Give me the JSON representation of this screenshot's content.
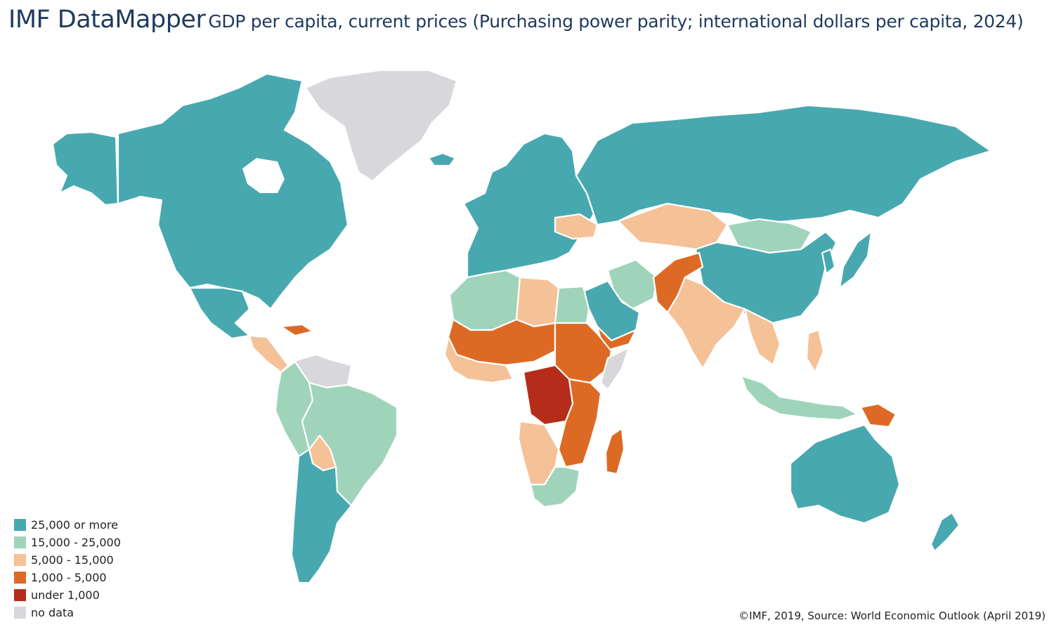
{
  "header": {
    "brand": "IMF DataMapper",
    "subtitle": "GDP per capita, current prices (Purchasing power parity; international dollars per capita, 2024)"
  },
  "legend": {
    "items": [
      {
        "label": "25,000 or more",
        "color": "#48a8b0"
      },
      {
        "label": "15,000 - 25,000",
        "color": "#9fd4bb"
      },
      {
        "label": "5,000 - 15,000",
        "color": "#f5c197"
      },
      {
        "label": "1,000 - 5,000",
        "color": "#dd6a24"
      },
      {
        "label": "under 1,000",
        "color": "#b62c1b"
      },
      {
        "label": "no data",
        "color": "#d8d8dc"
      }
    ]
  },
  "credit": "©IMF, 2019, Source: World Economic Outlook (April 2019)",
  "map": {
    "regions": [
      {
        "name": "greenland",
        "bin": 5
      },
      {
        "name": "north-america-canada-usa",
        "bin": 0
      },
      {
        "name": "alaska",
        "bin": 0
      },
      {
        "name": "mexico",
        "bin": 0
      },
      {
        "name": "central-america",
        "bin": 2
      },
      {
        "name": "caribbean",
        "bin": 3
      },
      {
        "name": "venezuela-guianas",
        "bin": 5
      },
      {
        "name": "colombia-peru-ecuador",
        "bin": 1
      },
      {
        "name": "brazil",
        "bin": 1
      },
      {
        "name": "bolivia",
        "bin": 2
      },
      {
        "name": "southern-cone",
        "bin": 0
      },
      {
        "name": "iceland",
        "bin": 0
      },
      {
        "name": "western-europe",
        "bin": 0
      },
      {
        "name": "ukraine",
        "bin": 2
      },
      {
        "name": "russia",
        "bin": 0
      },
      {
        "name": "mongolia",
        "bin": 1
      },
      {
        "name": "china",
        "bin": 0
      },
      {
        "name": "japan",
        "bin": 0
      },
      {
        "name": "korea",
        "bin": 0
      },
      {
        "name": "iran",
        "bin": 1
      },
      {
        "name": "arabia",
        "bin": 0
      },
      {
        "name": "yemen",
        "bin": 3
      },
      {
        "name": "afghanistan-pakistan",
        "bin": 3
      },
      {
        "name": "central-asia",
        "bin": 2
      },
      {
        "name": "india",
        "bin": 2
      },
      {
        "name": "southeast-asia",
        "bin": 2
      },
      {
        "name": "indonesia",
        "bin": 1
      },
      {
        "name": "philippines",
        "bin": 2
      },
      {
        "name": "papua-new-guinea",
        "bin": 3
      },
      {
        "name": "australia",
        "bin": 0
      },
      {
        "name": "new-zealand",
        "bin": 0
      },
      {
        "name": "north-africa-maghreb",
        "bin": 1
      },
      {
        "name": "libya",
        "bin": 2
      },
      {
        "name": "egypt",
        "bin": 1
      },
      {
        "name": "sahel",
        "bin": 3
      },
      {
        "name": "west-africa-coast",
        "bin": 2
      },
      {
        "name": "sudan-ethiopia",
        "bin": 3
      },
      {
        "name": "somalia",
        "bin": 5
      },
      {
        "name": "central-africa",
        "bin": 4
      },
      {
        "name": "east-africa",
        "bin": 3
      },
      {
        "name": "angola-namibia",
        "bin": 2
      },
      {
        "name": "botswana-south-africa",
        "bin": 1
      },
      {
        "name": "madagascar",
        "bin": 3
      }
    ]
  }
}
